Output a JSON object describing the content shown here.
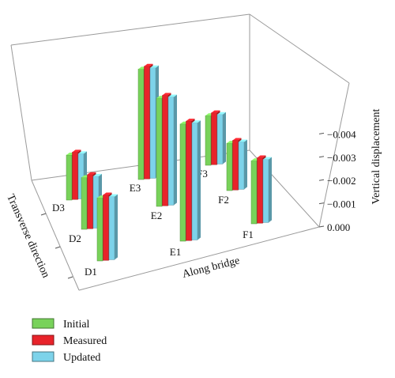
{
  "chart_data": {
    "type": "bar3d",
    "title": "",
    "xlabel": "Along bridge",
    "ylabel": "Transverse direction",
    "zlabel": "Vertical displacement",
    "zlim": [
      0,
      -0.0045
    ],
    "zticks": [
      "0.000",
      "−0.001",
      "−0.002",
      "−0.003",
      "−0.004"
    ],
    "grid": false,
    "legend_position": "bottom-left",
    "series": [
      {
        "name": "Initial",
        "color": "#78d25a"
      },
      {
        "name": "Measured",
        "color": "#e8232a"
      },
      {
        "name": "Updated",
        "color": "#7dd3ea"
      }
    ],
    "points": [
      {
        "label": "D1",
        "values": [
          -0.0028,
          -0.0029,
          -0.0028
        ]
      },
      {
        "label": "D2",
        "values": [
          -0.0023,
          -0.0024,
          -0.0023
        ]
      },
      {
        "label": "D3",
        "values": [
          -0.002,
          -0.0021,
          -0.002
        ]
      },
      {
        "label": "E1",
        "values": [
          -0.0052,
          -0.0053,
          -0.0052
        ]
      },
      {
        "label": "E2",
        "values": [
          -0.0048,
          -0.0049,
          -0.0048
        ]
      },
      {
        "label": "E3",
        "values": [
          -0.0049,
          -0.005,
          -0.0049
        ]
      },
      {
        "label": "F1",
        "values": [
          -0.0028,
          -0.0029,
          -0.0028
        ]
      },
      {
        "label": "F2",
        "values": [
          -0.0021,
          -0.0022,
          -0.0021
        ]
      },
      {
        "label": "F3",
        "values": [
          -0.0022,
          -0.0023,
          -0.0022
        ]
      }
    ]
  }
}
